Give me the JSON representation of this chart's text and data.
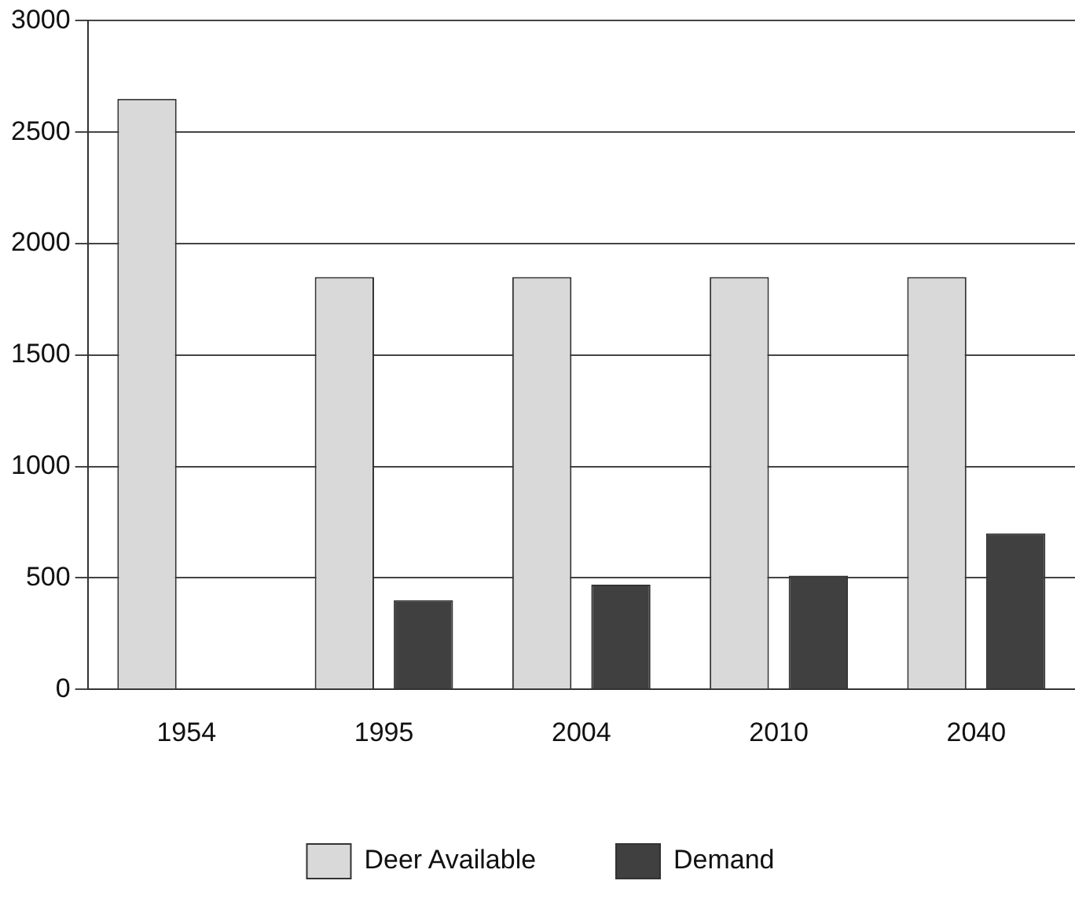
{
  "chart_data": {
    "type": "bar",
    "categories": [
      "1954",
      "1995",
      "2004",
      "2010",
      "2040"
    ],
    "series": [
      {
        "name": "Deer Available",
        "color": "#d9d9d9",
        "values": [
          2650,
          1850,
          1850,
          1850,
          1850
        ]
      },
      {
        "name": "Demand",
        "color": "#404040",
        "values": [
          null,
          400,
          470,
          510,
          700
        ]
      }
    ],
    "ylim": [
      0,
      3000
    ],
    "yticks": [
      0,
      500,
      1000,
      1500,
      2000,
      2500,
      3000
    ],
    "grid": "y",
    "legend": "bottom"
  }
}
